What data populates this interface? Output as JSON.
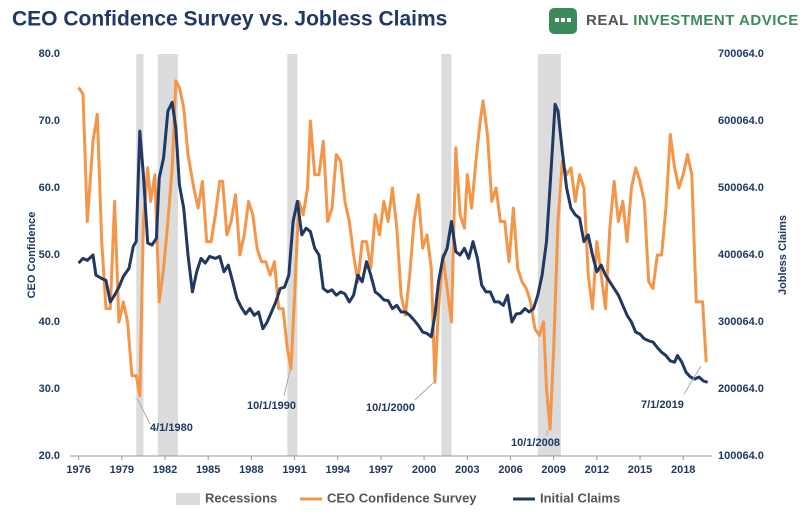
{
  "chart_data": {
    "type": "line",
    "title": "CEO Confidence Survey vs. Jobless Claims",
    "brand": [
      "REAL",
      "INVESTMENT",
      "ADVICE"
    ],
    "y_label": "CEO Confidence",
    "y2_label": "Jobless Claims",
    "xlim": [
      1975.4,
      2020
    ],
    "xticks": [
      1976,
      1979,
      1982,
      1985,
      1988,
      1991,
      1994,
      1997,
      2000,
      2003,
      2006,
      2009,
      2012,
      2015,
      2018
    ],
    "ylim": [
      20,
      80
    ],
    "yticks": [
      {
        "value": 20,
        "label": "20.0"
      },
      {
        "value": 30,
        "label": "30.0"
      },
      {
        "value": 40,
        "label": "40.0"
      },
      {
        "value": 50,
        "label": "50.0"
      },
      {
        "value": 60,
        "label": "60.0"
      },
      {
        "value": 70,
        "label": "70.0"
      },
      {
        "value": 80,
        "label": "80.0"
      }
    ],
    "y2lim": [
      100064,
      700064
    ],
    "y2ticks": [
      {
        "value": 100064,
        "label": "100064.0"
      },
      {
        "value": 200064,
        "label": "200064.0"
      },
      {
        "value": 300064,
        "label": "300064.0"
      },
      {
        "value": 400064,
        "label": "400064.0"
      },
      {
        "value": 500064,
        "label": "500064.0"
      },
      {
        "value": 600064,
        "label": "600064.0"
      },
      {
        "value": 700064,
        "label": "700064.0"
      }
    ],
    "recessions": {
      "name": "Recessions",
      "color": "#dcdcdc",
      "spans": [
        [
          1980,
          1980.5
        ],
        [
          1981.5,
          1982.9
        ],
        [
          1990.5,
          1991.2
        ],
        [
          2001.2,
          2001.9
        ],
        [
          2007.9,
          2009.5
        ]
      ]
    },
    "series": [
      {
        "name": "CEO Confidence Survey",
        "color": "#f4964a",
        "x": [
          1976.0,
          1976.3,
          1976.6,
          1977.0,
          1977.3,
          1977.6,
          1977.9,
          1978.2,
          1978.5,
          1978.8,
          1979.1,
          1979.4,
          1979.7,
          1980.0,
          1980.25,
          1980.5,
          1980.8,
          1981.0,
          1981.3,
          1981.6,
          1981.9,
          1982.2,
          1982.5,
          1982.75,
          1983.0,
          1983.3,
          1983.6,
          1984.0,
          1984.3,
          1984.6,
          1984.9,
          1985.2,
          1985.5,
          1985.8,
          1986.0,
          1986.3,
          1986.6,
          1986.9,
          1987.2,
          1987.5,
          1987.8,
          1988.1,
          1988.4,
          1988.7,
          1989.0,
          1989.3,
          1989.6,
          1989.9,
          1990.2,
          1990.5,
          1990.75,
          1991.0,
          1991.3,
          1991.6,
          1991.9,
          1992.1,
          1992.4,
          1992.7,
          1993.0,
          1993.3,
          1993.6,
          1993.9,
          1994.2,
          1994.5,
          1994.8,
          1995.1,
          1995.4,
          1995.7,
          1996.0,
          1996.3,
          1996.6,
          1996.9,
          1997.2,
          1997.5,
          1997.8,
          1998.1,
          1998.4,
          1998.7,
          1999.0,
          1999.3,
          1999.6,
          1999.9,
          2000.2,
          2000.5,
          2000.75,
          2001.0,
          2001.3,
          2001.6,
          2001.9,
          2002.2,
          2002.5,
          2002.8,
          2003.0,
          2003.3,
          2003.6,
          2003.9,
          2004.1,
          2004.4,
          2004.7,
          2005.0,
          2005.3,
          2005.6,
          2005.9,
          2006.2,
          2006.5,
          2006.8,
          2007.1,
          2007.4,
          2007.7,
          2008.0,
          2008.3,
          2008.5,
          2008.75,
          2009.0,
          2009.3,
          2009.6,
          2009.9,
          2010.2,
          2010.5,
          2010.8,
          2011.1,
          2011.4,
          2011.7,
          2012.0,
          2012.3,
          2012.6,
          2012.9,
          2013.2,
          2013.5,
          2013.8,
          2014.1,
          2014.4,
          2014.7,
          2015.0,
          2015.3,
          2015.6,
          2015.9,
          2016.2,
          2016.5,
          2016.8,
          2017.1,
          2017.4,
          2017.7,
          2018.0,
          2018.3,
          2018.6,
          2018.9,
          2019.1,
          2019.35,
          2019.6
        ],
        "values": [
          75,
          74,
          55,
          67,
          71,
          52,
          42,
          42,
          58,
          40,
          43,
          40,
          32,
          32,
          29,
          55,
          63,
          58,
          62,
          43,
          48,
          55,
          63,
          76,
          75,
          72,
          65,
          60,
          57,
          61,
          52,
          52,
          56,
          61,
          61,
          53,
          55,
          59,
          50,
          53,
          58,
          56,
          51,
          49,
          49,
          47,
          49,
          42,
          42,
          36,
          33,
          44,
          58,
          56,
          60,
          70,
          62,
          62,
          67,
          55,
          57,
          65,
          64,
          58,
          55,
          50,
          46,
          52,
          52,
          48,
          56,
          53,
          58,
          55,
          60,
          54,
          44,
          41,
          47,
          55,
          59,
          51,
          53,
          48,
          31,
          42,
          50,
          45,
          40,
          66,
          56,
          54,
          62,
          57,
          64,
          70,
          73,
          68,
          58,
          60,
          55,
          55,
          49,
          57,
          48,
          46,
          45,
          43,
          39,
          38,
          40,
          30,
          24,
          36,
          55,
          64,
          62,
          63,
          58,
          62,
          60,
          47,
          42,
          52,
          47,
          42,
          54,
          61,
          55,
          58,
          52,
          60,
          63,
          61,
          58,
          46,
          45,
          50,
          50,
          57,
          68,
          63,
          60,
          62,
          65,
          62,
          43,
          43,
          43,
          34
        ]
      },
      {
        "name": "Initial Claims",
        "color": "#1f3864",
        "axis": "y2",
        "x": [
          1976.0,
          1976.3,
          1976.6,
          1977.0,
          1977.2,
          1977.6,
          1977.9,
          1978.2,
          1978.5,
          1978.8,
          1979.1,
          1979.5,
          1979.8,
          1980.0,
          1980.25,
          1980.5,
          1980.8,
          1981.1,
          1981.4,
          1981.6,
          1981.9,
          1982.2,
          1982.5,
          1982.75,
          1983.0,
          1983.3,
          1983.6,
          1983.9,
          1984.2,
          1984.5,
          1984.8,
          1985.1,
          1985.5,
          1985.8,
          1986.1,
          1986.4,
          1986.7,
          1987.0,
          1987.3,
          1987.6,
          1987.9,
          1988.2,
          1988.5,
          1988.8,
          1989.1,
          1989.4,
          1989.7,
          1990.0,
          1990.3,
          1990.6,
          1990.9,
          1991.2,
          1991.5,
          1991.8,
          1992.1,
          1992.4,
          1992.7,
          1993.0,
          1993.3,
          1993.6,
          1993.9,
          1994.2,
          1994.5,
          1994.8,
          1995.1,
          1995.4,
          1995.7,
          1996.0,
          1996.3,
          1996.6,
          1996.9,
          1997.2,
          1997.5,
          1997.8,
          1998.1,
          1998.4,
          1998.7,
          1999.0,
          1999.3,
          1999.6,
          1999.9,
          2000.2,
          2000.5,
          2000.75,
          2001.0,
          2001.3,
          2001.6,
          2001.9,
          2002.2,
          2002.5,
          2002.8,
          2003.1,
          2003.4,
          2003.7,
          2004.0,
          2004.3,
          2004.6,
          2004.9,
          2005.2,
          2005.5,
          2005.8,
          2006.1,
          2006.4,
          2006.7,
          2007.0,
          2007.3,
          2007.6,
          2007.9,
          2008.2,
          2008.5,
          2008.8,
          2009.1,
          2009.3,
          2009.6,
          2009.9,
          2010.2,
          2010.5,
          2010.8,
          2011.1,
          2011.4,
          2011.7,
          2012.0,
          2012.3,
          2012.6,
          2012.9,
          2013.2,
          2013.5,
          2013.8,
          2014.1,
          2014.4,
          2014.7,
          2015.0,
          2015.3,
          2015.6,
          2015.9,
          2016.2,
          2016.5,
          2016.8,
          2017.1,
          2017.4,
          2017.6,
          2017.9,
          2018.2,
          2018.5,
          2018.8,
          2019.1,
          2019.4,
          2019.7
        ],
        "values": [
          388000,
          395000,
          392000,
          400000,
          370000,
          365000,
          362000,
          330000,
          340000,
          352000,
          368000,
          380000,
          413000,
          420000,
          585000,
          520000,
          418000,
          415000,
          425000,
          515000,
          545000,
          615000,
          628000,
          590000,
          505000,
          470000,
          400000,
          345000,
          375000,
          395000,
          388000,
          398000,
          395000,
          398000,
          375000,
          385000,
          360000,
          335000,
          322000,
          312000,
          320000,
          310000,
          315000,
          290000,
          300000,
          315000,
          330000,
          350000,
          352000,
          370000,
          450000,
          480000,
          430000,
          440000,
          435000,
          410000,
          400000,
          350000,
          345000,
          348000,
          340000,
          345000,
          342000,
          330000,
          340000,
          370000,
          360000,
          390000,
          370000,
          345000,
          340000,
          333000,
          332000,
          320000,
          325000,
          315000,
          315000,
          310000,
          303000,
          295000,
          285000,
          283000,
          278000,
          310000,
          360000,
          395000,
          410000,
          450000,
          405000,
          400000,
          410000,
          395000,
          420000,
          395000,
          355000,
          345000,
          345000,
          330000,
          330000,
          325000,
          340000,
          300000,
          312000,
          313000,
          320000,
          315000,
          320000,
          340000,
          370000,
          420000,
          520000,
          625000,
          615000,
          555000,
          500000,
          470000,
          460000,
          455000,
          420000,
          430000,
          400000,
          375000,
          385000,
          370000,
          360000,
          350000,
          340000,
          325000,
          310000,
          300000,
          285000,
          282000,
          275000,
          272000,
          270000,
          262000,
          255000,
          250000,
          242000,
          240000,
          250000,
          240000,
          225000,
          218000,
          215000,
          218000,
          212000,
          210000
        ]
      }
    ],
    "annotations": [
      "4/1/1980",
      "10/1/1990",
      "10/1/2000",
      "10/1/2008",
      "7/1/2019"
    ]
  }
}
